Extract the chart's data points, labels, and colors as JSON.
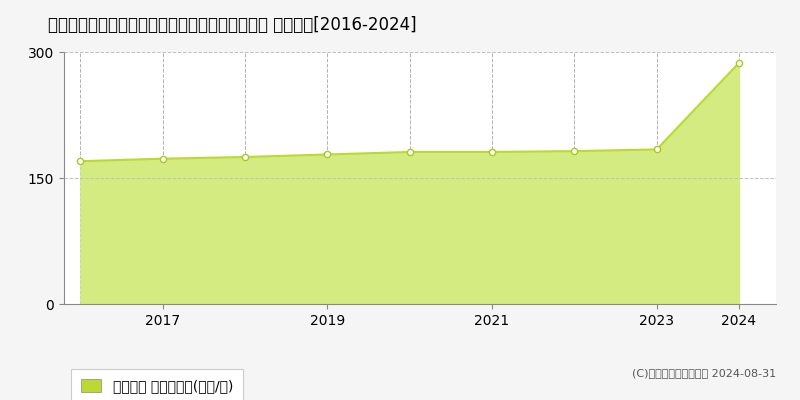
{
  "title": "東京都目黒区大岡山１丁目８６番１８　地価公示 地価推移[2016-2024]",
  "data_years": [
    2016,
    2017,
    2018,
    2019,
    2020,
    2021,
    2022,
    2023,
    2024
  ],
  "data_values": [
    170,
    173,
    175,
    178,
    181,
    181,
    182,
    184,
    287
  ],
  "ylim": [
    0,
    300
  ],
  "yticks": [
    0,
    150,
    300
  ],
  "xticks": [
    2017,
    2019,
    2021,
    2023,
    2024
  ],
  "line_color": "#bcd832",
  "fill_color": "#d4eb82",
  "marker_color": "white",
  "marker_edge_color": "#aac820",
  "bg_color": "#f5f5f5",
  "plot_bg_color": "#ffffff",
  "grid_color_x": "#b0b0b0",
  "grid_color_y": "#c0c0c0",
  "legend_label": "地価公示 平均坂単価(万円/坂)",
  "copyright_text": "(C)土地価格ドットコム 2024-08-31",
  "title_fontsize": 12,
  "axis_fontsize": 10,
  "legend_fontsize": 10,
  "xlim_left": 2015.8,
  "xlim_right": 2024.45
}
